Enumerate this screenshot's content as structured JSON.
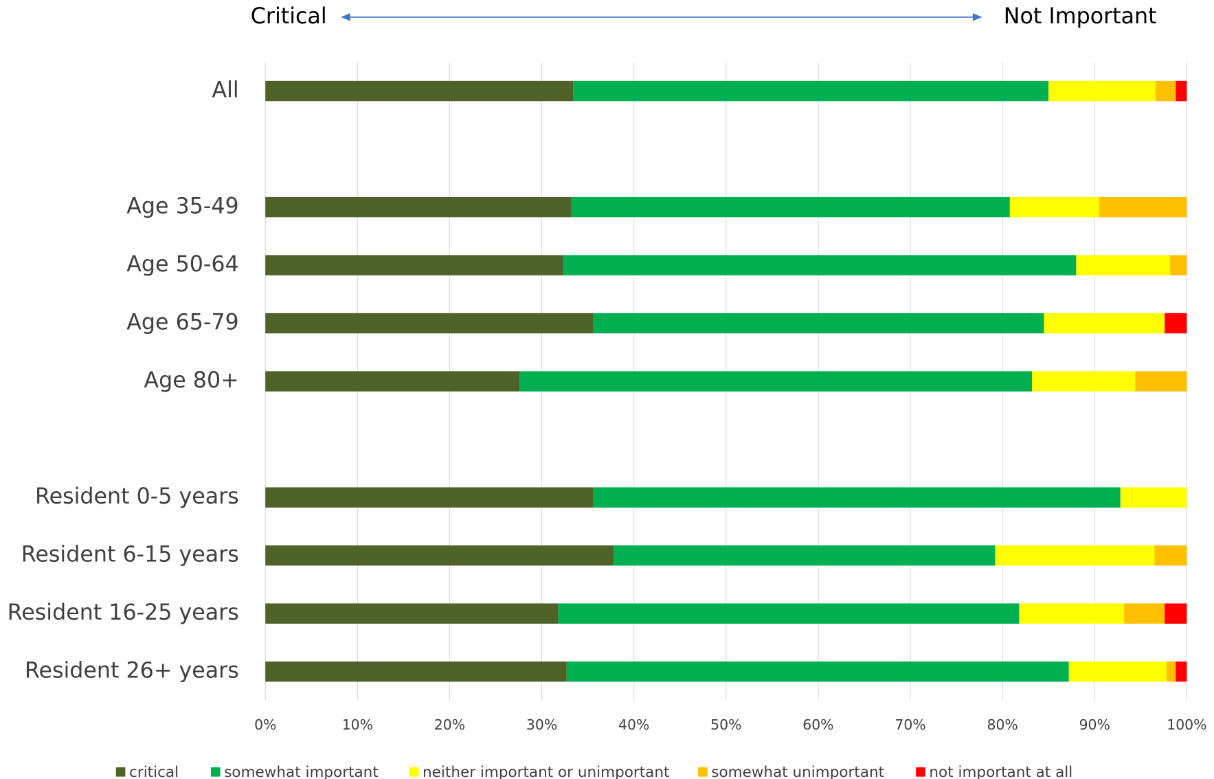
{
  "chart_data": {
    "type": "stacked_bar_horizontal",
    "annotations": [
      "Critical",
      "Not Important"
    ],
    "categories": [
      "All",
      null,
      "Age 35-49",
      "Age 50-64",
      "Age 65-79",
      "Age 80+",
      null,
      "Resident 0-5 years",
      "Resident 6-15 years",
      "Resident 16-25 years",
      "Resident 26+ years"
    ],
    "series": [
      {
        "name": "critical",
        "color": "#4f6228",
        "values": [
          33.4,
          null,
          33.2,
          32.3,
          35.6,
          27.6,
          null,
          35.6,
          37.8,
          31.8,
          32.7
        ]
      },
      {
        "name": "somewhat important",
        "color": "#00b050",
        "values": [
          51.6,
          null,
          47.6,
          55.7,
          48.9,
          55.6,
          null,
          57.2,
          41.4,
          50.0,
          54.5
        ]
      },
      {
        "name": "neither important or unimportant",
        "color": "#ffff00",
        "values": [
          11.6,
          null,
          9.7,
          10.2,
          13.1,
          11.2,
          null,
          7.2,
          17.3,
          11.4,
          10.6
        ]
      },
      {
        "name": "somewhat unimportant",
        "color": "#ffc000",
        "values": [
          2.2,
          null,
          9.5,
          1.8,
          0,
          5.6,
          null,
          0,
          3.5,
          4.4,
          1.0
        ]
      },
      {
        "name": "not important at all",
        "color": "#ff0000",
        "values": [
          1.2,
          null,
          0,
          0,
          2.4,
          0,
          null,
          0,
          0,
          2.4,
          1.2
        ]
      }
    ],
    "xlim": [
      0,
      100
    ],
    "xticks": [
      {
        "value": 0,
        "label": "0%"
      },
      {
        "value": 10,
        "label": "10%"
      },
      {
        "value": 20,
        "label": "20%"
      },
      {
        "value": 30,
        "label": "30%"
      },
      {
        "value": 40,
        "label": "40%"
      },
      {
        "value": 50,
        "label": "50%"
      },
      {
        "value": 60,
        "label": "60%"
      },
      {
        "value": 70,
        "label": "70%"
      },
      {
        "value": 80,
        "label": "80%"
      },
      {
        "value": 90,
        "label": "90%"
      },
      {
        "value": 100,
        "label": "100%"
      }
    ],
    "grid": true,
    "legend": "bottom"
  }
}
